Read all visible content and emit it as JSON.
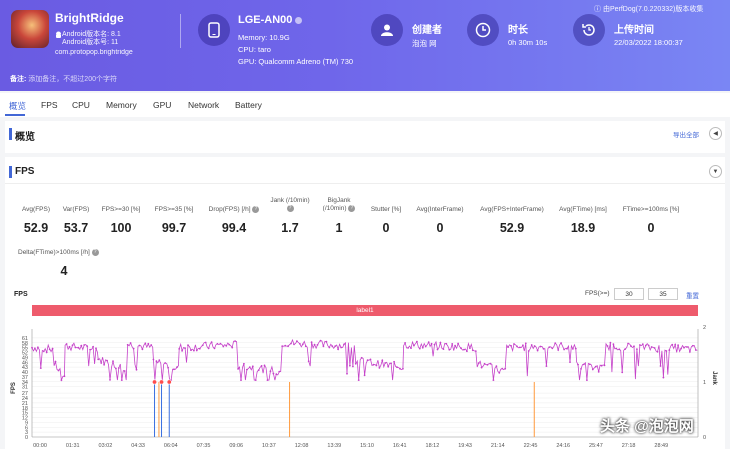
{
  "header": {
    "app_name": "BrightRidge",
    "android_version": "Android版本名: 8.1",
    "android_code": "Android版本号: 11",
    "package": "com.protopop.brightridge",
    "device_name": "LGE-AN00",
    "memory": "Memory: 10.9G",
    "cpu": "CPU: taro",
    "gpu": "GPU: Qualcomm Adreno (TM) 730",
    "creator_title": "创建者",
    "creator_value": "泡泡 网",
    "duration_title": "时长",
    "duration_value": "0h 30m 10s",
    "upload_title": "上传时间",
    "upload_value": "22/03/2022 18:00:37",
    "credit": "由PerfDog(7.0.220332)版本收集",
    "remark_label": "备注:",
    "remark_placeholder": "添加备注，不超过200个字符"
  },
  "tabs": [
    "概览",
    "FPS",
    "CPU",
    "Memory",
    "GPU",
    "Network",
    "Battery"
  ],
  "overview": {
    "title": "概览",
    "export": "导出全部"
  },
  "fps_section": {
    "title": "FPS",
    "metrics": [
      {
        "label": "Avg(FPS)",
        "value": "52.9"
      },
      {
        "label": "Var(FPS)",
        "value": "53.7"
      },
      {
        "label": "FPS>=30 [%]",
        "value": "100"
      },
      {
        "label": "FPS>=35 [%]",
        "value": "99.7"
      },
      {
        "label": "Drop(FPS) [/h]",
        "value": "99.4"
      },
      {
        "label": "Jank (/10min)",
        "value": "1.7"
      },
      {
        "label": "BigJank (/10min)",
        "value": "1"
      },
      {
        "label": "Stutter [%]",
        "value": "0"
      },
      {
        "label": "Avg(InterFrame)",
        "value": "0"
      },
      {
        "label": "Avg(FPS+InterFrame)",
        "value": "52.9"
      },
      {
        "label": "Avg(FTime) [ms]",
        "value": "18.9"
      },
      {
        "label": "FTime>=100ms [%]",
        "value": "0"
      }
    ],
    "metric2": {
      "label": "Delta(FTime)>100ms [/h]",
      "value": "4"
    }
  },
  "chart_controls": {
    "title": "FPS",
    "fps_threshold_label": "FPS(>=)",
    "threshold1": "30",
    "threshold2": "35",
    "reset": "重置",
    "label_bar": "label1"
  },
  "chart_data": {
    "type": "line",
    "title": "FPS",
    "ylabel": "FPS",
    "y2label": "Jank",
    "yticks": [
      0,
      3,
      6,
      9,
      12,
      15,
      18,
      21,
      24,
      27,
      31,
      34,
      37,
      40,
      43,
      46,
      49,
      52,
      55,
      58,
      61
    ],
    "y2ticks": [
      0,
      1,
      2
    ],
    "ylim": [
      0,
      64
    ],
    "y2lim": [
      0,
      2
    ],
    "xlabels": [
      "00:00",
      "01:31",
      "03:02",
      "04:33",
      "06:04",
      "07:35",
      "09:06",
      "10:37",
      "12:08",
      "13:39",
      "15:10",
      "16:41",
      "18:12",
      "19:43",
      "21:14",
      "22:45",
      "24:16",
      "25:47",
      "27:18",
      "28:49"
    ],
    "duration_seconds": 1810,
    "fps_color": "#c542c9",
    "jank_color": "#ff9a3c",
    "bigjank_color": "#3a6fe0",
    "fps_segments": [
      {
        "x": [
          0,
          60
        ],
        "y": [
          55,
          54
        ]
      },
      {
        "x": [
          60,
          90
        ],
        "y": [
          45,
          37
        ]
      },
      {
        "x": [
          90,
          180
        ],
        "y": [
          56,
          54
        ]
      },
      {
        "x": [
          180,
          260
        ],
        "y": [
          48,
          42
        ]
      },
      {
        "x": [
          260,
          330
        ],
        "y": [
          57,
          55
        ]
      },
      {
        "x": [
          330,
          400
        ],
        "y": [
          47,
          42
        ]
      },
      {
        "x": [
          400,
          560
        ],
        "y": [
          55,
          57
        ]
      },
      {
        "x": [
          560,
          680
        ],
        "y": [
          44,
          40
        ]
      },
      {
        "x": [
          680,
          880
        ],
        "y": [
          58,
          56
        ]
      },
      {
        "x": [
          880,
          1010
        ],
        "y": [
          47,
          43
        ]
      },
      {
        "x": [
          1010,
          1210
        ],
        "y": [
          57,
          55
        ]
      },
      {
        "x": [
          1210,
          1290
        ],
        "y": [
          45,
          40
        ]
      },
      {
        "x": [
          1290,
          1480
        ],
        "y": [
          55,
          56
        ]
      },
      {
        "x": [
          1480,
          1560
        ],
        "y": [
          44,
          42
        ]
      },
      {
        "x": [
          1560,
          1810
        ],
        "y": [
          56,
          54
        ]
      }
    ],
    "jank_events": [
      {
        "x": 333,
        "value": 1,
        "type": "bigjank"
      },
      {
        "x": 345,
        "value": 1,
        "type": "jank"
      },
      {
        "x": 352,
        "value": 1,
        "type": "bigjank"
      },
      {
        "x": 373,
        "value": 1,
        "type": "bigjank"
      },
      {
        "x": 700,
        "value": 1,
        "type": "jank"
      },
      {
        "x": 1365,
        "value": 1,
        "type": "jank"
      }
    ]
  }
}
